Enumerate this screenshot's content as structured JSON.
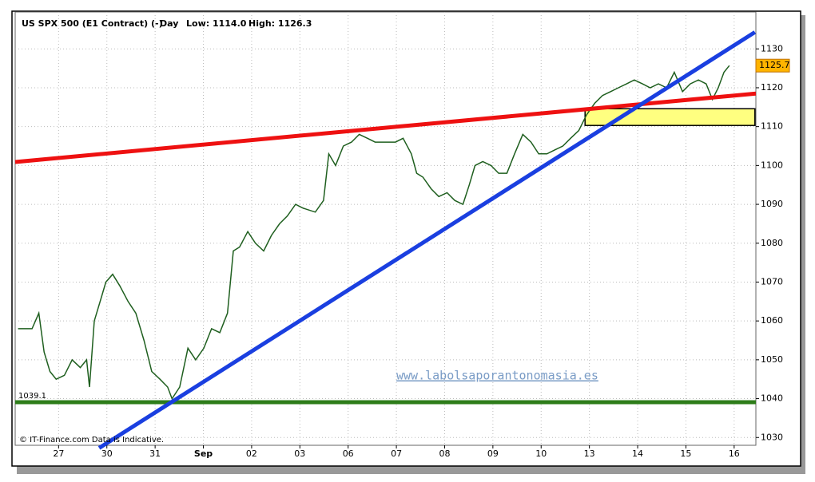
{
  "chart_data": {
    "type": "line",
    "header": [
      "US SPX 500 (E1 Contract) (-)",
      "Day",
      "Low: 1114.0",
      "High: 1126.3"
    ],
    "xticks": [
      {
        "value": 0,
        "label": "27"
      },
      {
        "value": 1,
        "label": "30"
      },
      {
        "value": 2,
        "label": "31"
      },
      {
        "value": 3,
        "label": "Sep"
      },
      {
        "value": 4,
        "label": "02"
      },
      {
        "value": 5,
        "label": "03"
      },
      {
        "value": 6,
        "label": "06"
      },
      {
        "value": 7,
        "label": "07"
      },
      {
        "value": 8,
        "label": "08"
      },
      {
        "value": 9,
        "label": "09"
      },
      {
        "value": 10,
        "label": "10"
      },
      {
        "value": 11,
        "label": "13"
      },
      {
        "value": 12,
        "label": "14"
      },
      {
        "value": 13,
        "label": "15"
      },
      {
        "value": 14,
        "label": "16"
      }
    ],
    "xlim": [
      -0.9,
      14.45
    ],
    "ylim": [
      1028,
      1139.5
    ],
    "yticks": [
      1030,
      1040,
      1050,
      1060,
      1070,
      1080,
      1090,
      1100,
      1110,
      1120,
      1130
    ],
    "grid": true,
    "series": [
      {
        "color": "#1f5f1f",
        "x": [
          -0.84,
          -0.55,
          -0.41,
          -0.3,
          -0.18,
          -0.05,
          0.12,
          0.28,
          0.45,
          0.58,
          0.64,
          0.74,
          0.86,
          0.98,
          1.12,
          1.27,
          1.44,
          1.6,
          1.77,
          1.93,
          2.1,
          2.26,
          2.35,
          2.51,
          2.68,
          2.84,
          3.01,
          3.17,
          3.34,
          3.5,
          3.62,
          3.75,
          3.92,
          4.08,
          4.25,
          4.41,
          4.58,
          4.74,
          4.91,
          5.07,
          5.32,
          5.49,
          5.6,
          5.74,
          5.9,
          6.07,
          6.23,
          6.4,
          6.56,
          6.73,
          6.98,
          7.14,
          7.31,
          7.42,
          7.55,
          7.72,
          7.88,
          8.05,
          8.21,
          8.38,
          8.51,
          8.63,
          8.79,
          8.96,
          9.12,
          9.29,
          9.45,
          9.62,
          9.79,
          9.95,
          10.12,
          10.28,
          10.45,
          10.61,
          10.78,
          10.94,
          11.11,
          11.27,
          11.44,
          11.6,
          11.77,
          11.93,
          12.1,
          12.26,
          12.43,
          12.6,
          12.76,
          12.93,
          13.09,
          13.26,
          13.42,
          13.55,
          13.67,
          13.79,
          13.9
        ],
        "values": [
          1058,
          1058,
          1062,
          1052,
          1047,
          1045,
          1046,
          1050,
          1048,
          1050,
          1043,
          1060,
          1065,
          1070,
          1072,
          1069,
          1065,
          1062,
          1055,
          1047,
          1045,
          1043,
          1040,
          1043,
          1053,
          1050,
          1053,
          1058,
          1057,
          1062,
          1078,
          1079,
          1083,
          1080,
          1078,
          1082,
          1085,
          1087,
          1090,
          1089,
          1088,
          1091,
          1103,
          1100,
          1105,
          1106,
          1108,
          1107,
          1106,
          1106,
          1106,
          1107,
          1103,
          1098,
          1097,
          1094,
          1092,
          1093,
          1091,
          1090,
          1095,
          1100,
          1101,
          1100,
          1098,
          1098,
          1103,
          1108,
          1106,
          1103,
          1103,
          1104,
          1105,
          1107,
          1109,
          1113,
          1116,
          1118,
          1119,
          1120,
          1121,
          1122,
          1121,
          1120,
          1121,
          1120,
          1124,
          1119,
          1121,
          1122,
          1121,
          1117,
          1120,
          1124,
          1125.7
        ]
      }
    ],
    "trendlines": [
      {
        "color": "#ee1111",
        "x": [
          -0.9,
          14.45
        ],
        "y": [
          1100.9,
          1118.5
        ]
      },
      {
        "color": "#1a3fe0",
        "x": [
          0.84,
          14.43
        ],
        "y": [
          1027.3,
          1134.3
        ]
      }
    ],
    "support": {
      "color": "#2e7d1a",
      "value": 1039.1
    },
    "zone": {
      "color": "#ffff80",
      "x": [
        10.91,
        14.43
      ],
      "y": [
        1110.3,
        1114.6
      ]
    },
    "last_price": 1125.7,
    "watermark": "www.labolsaporantonomasia.es",
    "copyright": "© IT-Finance.com Data is Indicative."
  }
}
